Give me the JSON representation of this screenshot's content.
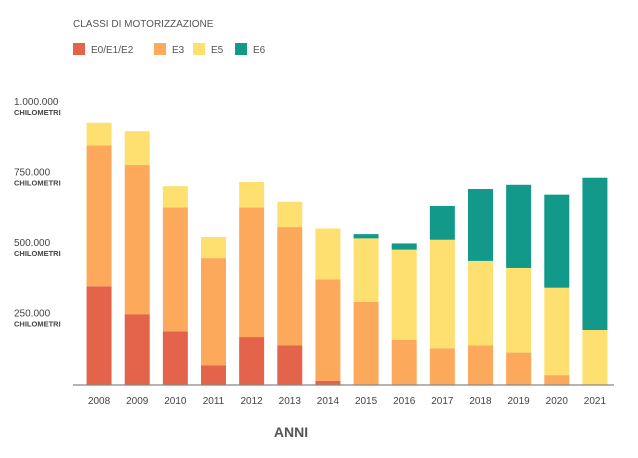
{
  "chart_data": {
    "type": "bar",
    "stacked": true,
    "legend_title": "CLASSI DI MOTORIZZAZIONE",
    "legend_position": "top-left",
    "xlabel": "ANNI",
    "ylabel": "",
    "y_unit_label": "CHILOMETRI",
    "ylim": [
      0,
      1000000
    ],
    "yticks": [
      250000,
      500000,
      750000,
      1000000
    ],
    "ytick_labels": [
      "250.000",
      "500.000",
      "750.000",
      "1.000.000"
    ],
    "grid": false,
    "categories": [
      "2008",
      "2009",
      "2010",
      "2011",
      "2012",
      "2013",
      "2014",
      "2015",
      "2016",
      "2017",
      "2018",
      "2019",
      "2020",
      "2021"
    ],
    "series": [
      {
        "name": "E0/E1/E2",
        "color": "#e3644a",
        "values": [
          350000,
          250000,
          190000,
          70000,
          170000,
          140000,
          15000,
          0,
          0,
          0,
          0,
          0,
          0,
          0
        ]
      },
      {
        "name": "E3",
        "color": "#fca95c",
        "values": [
          500000,
          530000,
          440000,
          380000,
          460000,
          420000,
          360000,
          295000,
          160000,
          130000,
          140000,
          115000,
          35000,
          0
        ]
      },
      {
        "name": "E5",
        "color": "#fde070",
        "values": [
          80000,
          120000,
          75000,
          75000,
          90000,
          90000,
          180000,
          225000,
          320000,
          385000,
          300000,
          300000,
          310000,
          195000
        ]
      },
      {
        "name": "E6",
        "color": "#12998a",
        "values": [
          0,
          0,
          0,
          0,
          0,
          0,
          0,
          15000,
          22000,
          120000,
          255000,
          295000,
          330000,
          540000
        ]
      }
    ]
  }
}
